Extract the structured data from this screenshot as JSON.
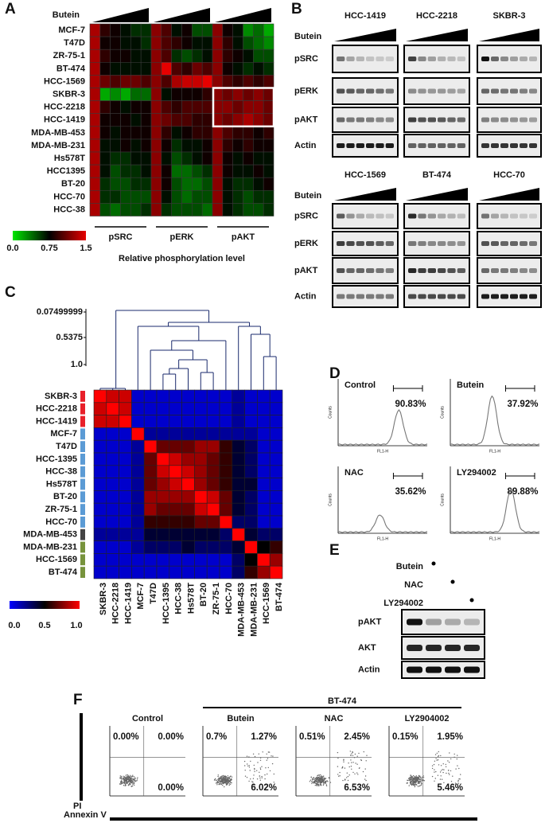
{
  "panel_a": {
    "label": "A",
    "butein": "Butein",
    "rows": [
      "MCF-7",
      "T47D",
      "ZR-75-1",
      "BT-474",
      "HCC-1569",
      "SKBR-3",
      "HCC-2218",
      "HCC-1419",
      "MDA-MB-453",
      "MDA-MB-231",
      "Hs578T",
      "HCC1395",
      "BT-20",
      "HCC-70",
      "HCC-38"
    ],
    "groups": [
      "pSRC",
      "pERK",
      "pAKT"
    ],
    "values": [
      [
        1.3,
        0.9,
        0.8,
        0.7,
        0.6,
        0.6,
        1.2,
        1.0,
        0.7,
        0.8,
        0.5,
        0.5,
        1.2,
        0.8,
        0.7,
        0.3,
        0.4,
        0.2
      ],
      [
        1.3,
        0.8,
        0.8,
        0.7,
        0.7,
        0.6,
        1.2,
        1.0,
        0.9,
        0.8,
        0.7,
        0.7,
        1.2,
        0.9,
        0.7,
        0.5,
        0.4,
        0.3
      ],
      [
        1.3,
        0.9,
        0.8,
        0.8,
        0.7,
        0.7,
        1.2,
        1.0,
        0.6,
        0.5,
        0.6,
        0.7,
        1.2,
        0.9,
        0.8,
        0.7,
        0.5,
        0.5
      ],
      [
        1.3,
        0.8,
        0.7,
        0.7,
        0.7,
        0.7,
        1.2,
        1.5,
        1.0,
        0.9,
        1.1,
        1.0,
        1.2,
        0.8,
        0.7,
        0.6,
        0.7,
        0.6
      ],
      [
        1.3,
        1.1,
        1.0,
        1.1,
        1.1,
        1.0,
        1.2,
        1.0,
        1.3,
        1.4,
        1.4,
        1.5,
        1.2,
        1.0,
        0.9,
        1.0,
        0.9,
        1.0
      ],
      [
        1.3,
        0.2,
        0.3,
        0.2,
        0.4,
        0.4,
        1.2,
        0.7,
        0.8,
        0.8,
        0.8,
        0.9,
        1.2,
        1.1,
        1.2,
        1.1,
        1.2,
        1.1
      ],
      [
        1.3,
        0.9,
        0.8,
        0.7,
        0.8,
        0.8,
        1.2,
        1.0,
        0.9,
        1.0,
        1.0,
        1.0,
        1.2,
        1.2,
        1.1,
        1.2,
        1.2,
        1.1
      ],
      [
        1.3,
        0.8,
        0.8,
        0.8,
        0.7,
        0.8,
        1.2,
        1.1,
        1.0,
        1.0,
        0.9,
        0.9,
        1.2,
        1.1,
        1.2,
        1.3,
        1.2,
        1.1
      ],
      [
        1.3,
        0.8,
        0.7,
        0.8,
        0.8,
        0.8,
        1.2,
        0.9,
        0.7,
        0.8,
        0.9,
        0.9,
        1.2,
        1.0,
        0.9,
        0.9,
        0.8,
        0.9
      ],
      [
        1.3,
        0.7,
        0.7,
        0.8,
        0.7,
        0.8,
        1.2,
        0.8,
        0.6,
        0.7,
        0.7,
        0.8,
        1.2,
        0.9,
        0.8,
        0.9,
        0.8,
        0.8
      ],
      [
        1.3,
        0.7,
        0.6,
        0.6,
        0.7,
        0.7,
        1.2,
        0.7,
        0.5,
        0.6,
        0.7,
        0.8,
        1.2,
        0.8,
        0.7,
        0.8,
        0.7,
        0.7
      ],
      [
        1.3,
        0.7,
        0.5,
        0.6,
        0.6,
        0.7,
        1.2,
        0.8,
        0.4,
        0.4,
        0.5,
        0.6,
        1.2,
        0.8,
        0.7,
        0.7,
        0.8,
        0.7
      ],
      [
        1.3,
        0.6,
        0.5,
        0.5,
        0.6,
        0.6,
        1.2,
        0.8,
        0.5,
        0.4,
        0.4,
        0.5,
        1.2,
        0.7,
        0.6,
        0.6,
        0.7,
        0.8
      ],
      [
        1.3,
        0.6,
        0.6,
        0.5,
        0.5,
        0.5,
        1.2,
        0.7,
        0.5,
        0.4,
        0.5,
        0.5,
        1.2,
        0.7,
        0.6,
        0.5,
        0.6,
        0.6
      ],
      [
        1.3,
        0.5,
        0.4,
        0.5,
        0.5,
        0.6,
        1.2,
        0.6,
        0.5,
        0.5,
        0.5,
        0.4,
        1.2,
        0.7,
        0.6,
        0.5,
        0.5,
        0.6
      ]
    ],
    "colorbar_ticks": [
      {
        "value": 0,
        "label": "0.0"
      },
      {
        "value": 0.75,
        "label": "0.75"
      },
      {
        "value": 1.5,
        "label": "1.5"
      }
    ],
    "xlabel": "Relative phosphorylation level"
  },
  "panel_b": {
    "label": "B",
    "butein": "Butein",
    "proteins": [
      "pSRC",
      "pERK",
      "pAKT",
      "Actin"
    ],
    "blots": [
      "HCC-1419",
      "HCC-2218",
      "SKBR-3",
      "HCC-1569",
      "BT-474",
      "HCC-70"
    ]
  },
  "panel_c": {
    "label": "C",
    "dendrogram_ticks": [
      "0.07499999",
      "0.5375",
      "1.0"
    ],
    "labels": [
      "SKBR-3",
      "HCC-2218",
      "HCC-1419",
      "MCF-7",
      "T47D",
      "HCC-1395",
      "HCC-38",
      "Hs578T",
      "BT-20",
      "ZR-75-1",
      "HCC-70",
      "MDA-MB-453",
      "MDA-MB-231",
      "HCC-1569",
      "BT-474"
    ],
    "values": [
      [
        1,
        0.9,
        0.9,
        0.1,
        0.1,
        0.1,
        0.1,
        0.1,
        0.1,
        0.1,
        0.1,
        0.2,
        0.1,
        0.1,
        0.1
      ],
      [
        0.9,
        1,
        0.9,
        0.1,
        0.1,
        0.1,
        0.1,
        0.1,
        0.1,
        0.1,
        0.1,
        0.2,
        0.1,
        0.1,
        0.1
      ],
      [
        0.9,
        0.9,
        1,
        0.1,
        0.1,
        0.1,
        0.1,
        0.1,
        0.1,
        0.1,
        0.1,
        0.2,
        0.1,
        0.1,
        0.1
      ],
      [
        0.1,
        0.1,
        0.1,
        1,
        0.2,
        0.2,
        0.2,
        0.2,
        0.2,
        0.2,
        0.2,
        0.2,
        0.2,
        0.1,
        0.1
      ],
      [
        0.1,
        0.1,
        0.1,
        0.2,
        1,
        0.7,
        0.7,
        0.7,
        0.8,
        0.8,
        0.6,
        0.4,
        0.3,
        0.1,
        0.1
      ],
      [
        0.1,
        0.1,
        0.1,
        0.2,
        0.7,
        1,
        0.9,
        0.8,
        0.8,
        0.7,
        0.6,
        0.4,
        0.3,
        0.1,
        0.1
      ],
      [
        0.1,
        0.1,
        0.1,
        0.2,
        0.7,
        0.9,
        1,
        0.9,
        0.8,
        0.7,
        0.6,
        0.4,
        0.3,
        0.1,
        0.1
      ],
      [
        0.1,
        0.1,
        0.1,
        0.2,
        0.7,
        0.8,
        0.9,
        1,
        0.8,
        0.7,
        0.6,
        0.4,
        0.4,
        0.1,
        0.1
      ],
      [
        0.1,
        0.1,
        0.1,
        0.2,
        0.8,
        0.8,
        0.8,
        0.8,
        1,
        0.9,
        0.7,
        0.4,
        0.3,
        0.1,
        0.1
      ],
      [
        0.1,
        0.1,
        0.1,
        0.2,
        0.8,
        0.7,
        0.7,
        0.7,
        0.9,
        1,
        0.7,
        0.4,
        0.3,
        0.1,
        0.1
      ],
      [
        0.1,
        0.1,
        0.1,
        0.2,
        0.6,
        0.6,
        0.6,
        0.6,
        0.7,
        0.7,
        1,
        0.3,
        0.3,
        0.1,
        0.1
      ],
      [
        0.2,
        0.2,
        0.2,
        0.2,
        0.4,
        0.4,
        0.4,
        0.4,
        0.4,
        0.4,
        0.3,
        1,
        0.4,
        0.3,
        0.3
      ],
      [
        0.1,
        0.1,
        0.1,
        0.2,
        0.3,
        0.3,
        0.3,
        0.4,
        0.3,
        0.3,
        0.3,
        0.4,
        1,
        0.5,
        0.6
      ],
      [
        0.1,
        0.1,
        0.1,
        0.1,
        0.1,
        0.1,
        0.1,
        0.1,
        0.1,
        0.1,
        0.1,
        0.3,
        0.5,
        1,
        0.8
      ],
      [
        0.1,
        0.1,
        0.1,
        0.1,
        0.1,
        0.1,
        0.1,
        0.1,
        0.1,
        0.1,
        0.1,
        0.3,
        0.6,
        0.8,
        1
      ]
    ],
    "colorbar_ticks": [
      {
        "value": 0,
        "label": "0.0"
      },
      {
        "value": 0.5,
        "label": "0.5"
      },
      {
        "value": 1,
        "label": "1.0"
      }
    ]
  },
  "panel_d": {
    "label": "D",
    "y_axis": "Counts",
    "x_axis": "FL1-H",
    "plots": [
      {
        "name": "Control",
        "percent": "90.83%"
      },
      {
        "name": "Butein",
        "percent": "37.92%"
      },
      {
        "name": "NAC",
        "percent": "35.62%"
      },
      {
        "name": "LY294002",
        "percent": "89.88%"
      }
    ]
  },
  "panel_e": {
    "label": "E",
    "treatments": [
      "Butein",
      "NAC",
      "LY294002"
    ],
    "proteins": [
      "pAKT",
      "AKT",
      "Actin"
    ]
  },
  "panel_f": {
    "label": "F",
    "cell_line": "BT-474",
    "y_label": "PI",
    "x_label": "Annexin V",
    "plots": [
      {
        "name": "Control",
        "upper_left": "0.00%",
        "upper_right": "0.00%",
        "lower_right": "0.00%"
      },
      {
        "name": "Butein",
        "upper_left": "0.7%",
        "upper_right": "1.27%",
        "lower_right": "6.02%"
      },
      {
        "name": "NAC",
        "upper_left": "0.51%",
        "upper_right": "2.45%",
        "lower_right": "6.53%"
      },
      {
        "name": "LY2904002",
        "upper_left": "0.15%",
        "upper_right": "1.95%",
        "lower_right": "5.46%"
      }
    ]
  }
}
